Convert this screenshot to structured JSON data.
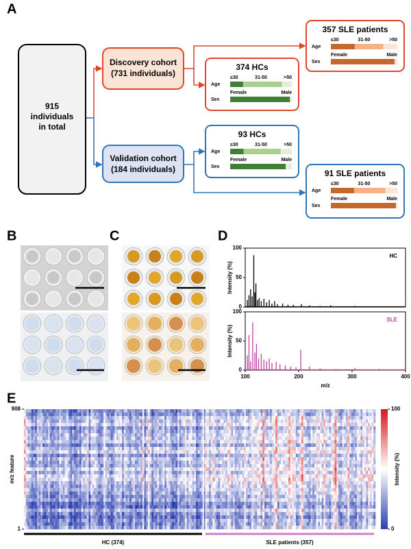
{
  "panels": {
    "a": "A",
    "b": "B",
    "c": "C",
    "d": "D",
    "e": "E"
  },
  "flowchart": {
    "total": [
      "915",
      "individuals",
      "in total"
    ],
    "discovery": {
      "title": "Discovery cohort",
      "subtitle": "(731 individuals)"
    },
    "validation": {
      "title": "Validation cohort",
      "subtitle": "(184 individuals)"
    },
    "age_label": "Age",
    "sex_label": "Sex",
    "groups": [
      {
        "title": "357 SLE patients",
        "age_labels": [
          "≤30",
          "31-50",
          ">50"
        ],
        "age_values": [
          36,
          43,
          21
        ],
        "sex_labels": [
          "Female",
          "Male"
        ],
        "sex_values": [
          96,
          4
        ],
        "age_colors": [
          "#c5682e",
          "#f4b183",
          "#fbe5d6"
        ],
        "sex_colors": [
          "#c5682e",
          "#fbe5d6"
        ]
      },
      {
        "title": "374 HCs",
        "age_labels": [
          "≤30",
          "31-50",
          ">50"
        ],
        "age_values": [
          21,
          63,
          16
        ],
        "sex_labels": [
          "Female",
          "Male"
        ],
        "sex_values": [
          97,
          3
        ],
        "age_colors": [
          "#3f7f35",
          "#a9d08e",
          "#e2efda"
        ],
        "sex_colors": [
          "#3f7f35",
          "#e2efda"
        ]
      },
      {
        "title": "93 HCs",
        "age_labels": [
          "≤30",
          "31-50",
          ">50"
        ],
        "age_values": [
          22,
          60,
          18
        ],
        "sex_labels": [
          "Female",
          "Male"
        ],
        "sex_values": [
          90,
          10
        ],
        "age_colors": [
          "#3f7f35",
          "#a9d08e",
          "#e2efda"
        ],
        "sex_colors": [
          "#3f7f35",
          "#e2efda"
        ]
      },
      {
        "title": "91 SLE patients",
        "age_labels": [
          "≤30",
          "31-50",
          ">50"
        ],
        "age_values": [
          35,
          47,
          18
        ],
        "sex_labels": [
          "Female",
          "Male"
        ],
        "sex_values": [
          98,
          2
        ],
        "age_colors": [
          "#c5682e",
          "#f4b183",
          "#fbe5d6"
        ],
        "sex_colors": [
          "#c5682e",
          "#fbe5d6"
        ]
      }
    ]
  },
  "spectra": {
    "type": "spectrum",
    "x_label": "m/z",
    "y_label": "Intensity (%)",
    "xlim": [
      100,
      400
    ],
    "xticks": [
      100,
      200,
      300,
      400
    ],
    "ylim": [
      0,
      100
    ],
    "yticks": [
      0,
      50,
      100
    ],
    "series": [
      {
        "name": "HC",
        "color": "#000000",
        "x": [
          104,
          107,
          110,
          113,
          116,
          118,
          120,
          123,
          126,
          130,
          135,
          140,
          145,
          150,
          155,
          160,
          170,
          180,
          190,
          205,
          220,
          240,
          260,
          305
        ],
        "values": [
          12,
          20,
          30,
          18,
          88,
          25,
          40,
          12,
          15,
          10,
          14,
          8,
          12,
          6,
          10,
          5,
          6,
          4,
          4,
          5,
          3,
          2,
          3,
          2
        ]
      },
      {
        "name": "SLE",
        "color": "#c040a0",
        "x": [
          104,
          107,
          110,
          114,
          118,
          121,
          125,
          130,
          135,
          140,
          145,
          150,
          158,
          165,
          175,
          185,
          195,
          204,
          220,
          240,
          270,
          305,
          350
        ],
        "values": [
          25,
          60,
          15,
          82,
          30,
          45,
          20,
          28,
          18,
          15,
          20,
          12,
          14,
          10,
          8,
          6,
          5,
          35,
          6,
          3,
          2,
          4,
          2
        ]
      }
    ]
  },
  "heatmap": {
    "y_label": "m/z feature",
    "ylim": [
      1,
      908
    ],
    "yticks": [
      1,
      908
    ],
    "clim": [
      0,
      100
    ],
    "cticks": [
      0,
      100
    ],
    "colorbar_label": "Intensity (%)",
    "groups": [
      {
        "name": "HC (374)",
        "color": "#000000"
      },
      {
        "name": "SLE patients (357)",
        "color": "#d27ac8"
      }
    ]
  }
}
